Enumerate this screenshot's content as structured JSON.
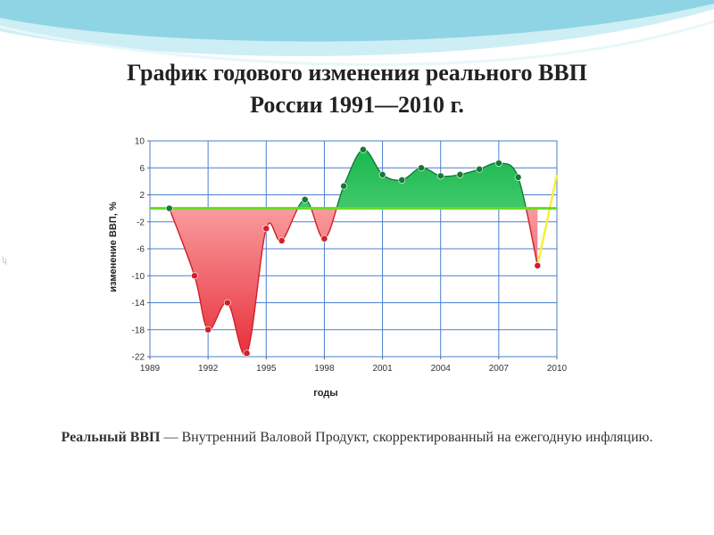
{
  "slide": {
    "title_line1": "График годового изменения реального ВВП",
    "title_line2": "России 1991—2010 г.",
    "caption_bold": "Реальный ВВП",
    "caption_rest": " — Внутренний Валовой Продукт, скорректированный на ежегодную инфляцию."
  },
  "colors": {
    "negative_fill": "#e8303a",
    "positive_fill": "#19b84e",
    "baseline": "#66dd22",
    "grid": "#4a7fd0",
    "marker_negative": "#d0202a",
    "marker_positive": "#157a35",
    "forecast_line": "#f5f03a"
  },
  "chart_data": {
    "type": "area",
    "xlabel": "годы",
    "ylabel": "изменение ВВП, %",
    "xlim": [
      1989,
      2010
    ],
    "ylim": [
      -22,
      10
    ],
    "grid": true,
    "x_ticks": [
      "1989",
      "1992",
      "1995",
      "1998",
      "2001",
      "2004",
      "2007",
      "2010"
    ],
    "y_ticks": [
      "10",
      "6",
      "2",
      "-2",
      "-6",
      "-10",
      "-14",
      "-18",
      "-22"
    ],
    "baseline_y": 0,
    "points": [
      {
        "x": 1990,
        "y": 0
      },
      {
        "x": 1991.3,
        "y": -10
      },
      {
        "x": 1992,
        "y": -18
      },
      {
        "x": 1993,
        "y": -14
      },
      {
        "x": 1994,
        "y": -21.5
      },
      {
        "x": 1995,
        "y": -3
      },
      {
        "x": 1995.8,
        "y": -4.8
      },
      {
        "x": 1997,
        "y": 1.3
      },
      {
        "x": 1998,
        "y": -4.5
      },
      {
        "x": 1999,
        "y": 3.3
      },
      {
        "x": 2000,
        "y": 8.7
      },
      {
        "x": 2001,
        "y": 5
      },
      {
        "x": 2002,
        "y": 4.2
      },
      {
        "x": 2003,
        "y": 6
      },
      {
        "x": 2004,
        "y": 4.8
      },
      {
        "x": 2005,
        "y": 5
      },
      {
        "x": 2006,
        "y": 5.8
      },
      {
        "x": 2007,
        "y": 6.7
      },
      {
        "x": 2008,
        "y": 4.6
      },
      {
        "x": 2009,
        "y": -8.5
      }
    ],
    "forecast": [
      {
        "x": 2009,
        "y": -8.5
      },
      {
        "x": 2010,
        "y": 5
      }
    ]
  }
}
